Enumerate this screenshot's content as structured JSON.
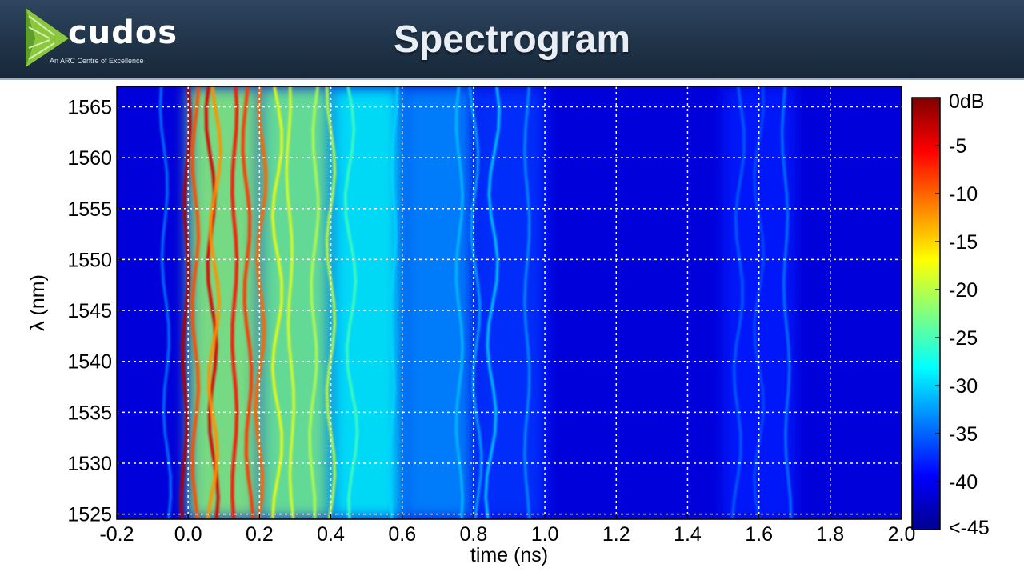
{
  "header": {
    "title": "Spectrogram",
    "logo_text": "cudos",
    "logo_tagline": "An ARC Centre of Excellence",
    "background_color": "#223650"
  },
  "chart_data": {
    "type": "heatmap",
    "title": "",
    "xlabel": "time (ns)",
    "ylabel": "λ (nm)",
    "xlim": [
      -0.2,
      2.0
    ],
    "ylim": [
      1524.5,
      1567
    ],
    "x_ticks": [
      -0.2,
      0.0,
      0.2,
      0.4,
      0.6,
      0.8,
      1.0,
      1.2,
      1.4,
      1.6,
      1.8,
      2.0
    ],
    "x_tick_labels": [
      "-0.2",
      "0.0",
      "0.2",
      "0.4",
      "0.6",
      "0.8",
      "1.0",
      "1.2",
      "1.4",
      "1.6",
      "1.8",
      "2.0"
    ],
    "y_ticks": [
      1525,
      1530,
      1535,
      1540,
      1545,
      1550,
      1555,
      1560,
      1565
    ],
    "y_tick_labels": [
      "1525",
      "1530",
      "1535",
      "1540",
      "1545",
      "1550",
      "1555",
      "1560",
      "1565"
    ],
    "grid": true,
    "colorbar": {
      "range": [
        -45,
        0
      ],
      "unit": "dB",
      "ticks": [
        0,
        -5,
        -10,
        -15,
        -20,
        -25,
        -30,
        -35,
        -40,
        -45
      ],
      "tick_labels": [
        "0dB",
        "-5",
        "-10",
        "-15",
        "-20",
        "-25",
        "-30",
        "-35",
        "-40",
        "<-45"
      ],
      "colormap": "jet"
    },
    "background_level_db": -41,
    "bands": [
      {
        "x_start": 0.0,
        "x_end": 0.2,
        "level_db": -22
      },
      {
        "x_start": 0.2,
        "x_end": 0.4,
        "level_db": -23
      },
      {
        "x_start": 0.4,
        "x_end": 0.6,
        "level_db": -28
      },
      {
        "x_start": 0.6,
        "x_end": 0.8,
        "level_db": -33
      },
      {
        "x_start": 0.8,
        "x_end": 1.0,
        "level_db": -37
      },
      {
        "x_start": 1.5,
        "x_end": 1.7,
        "level_db": -38
      }
    ],
    "traces": [
      {
        "x": 0.0,
        "level_db": -2
      },
      {
        "x": 0.02,
        "level_db": -9
      },
      {
        "x": 0.06,
        "level_db": -4
      },
      {
        "x": 0.08,
        "level_db": -12
      },
      {
        "x": 0.13,
        "level_db": -6
      },
      {
        "x": 0.16,
        "level_db": -8
      },
      {
        "x": 0.21,
        "level_db": -10
      },
      {
        "x": 0.25,
        "level_db": -17
      },
      {
        "x": 0.28,
        "level_db": -18
      },
      {
        "x": 0.36,
        "level_db": -20
      },
      {
        "x": 0.4,
        "level_db": -19
      },
      {
        "x": 0.45,
        "level_db": -25
      },
      {
        "x": 0.58,
        "level_db": -30
      },
      {
        "x": 0.76,
        "level_db": -31
      },
      {
        "x": 0.8,
        "level_db": -32
      },
      {
        "x": 0.86,
        "level_db": -30
      },
      {
        "x": 0.95,
        "level_db": -33
      },
      {
        "x": -0.07,
        "level_db": -34
      },
      {
        "x": 1.55,
        "level_db": -35
      },
      {
        "x": 1.6,
        "level_db": -36
      },
      {
        "x": 1.67,
        "level_db": -34
      }
    ]
  }
}
